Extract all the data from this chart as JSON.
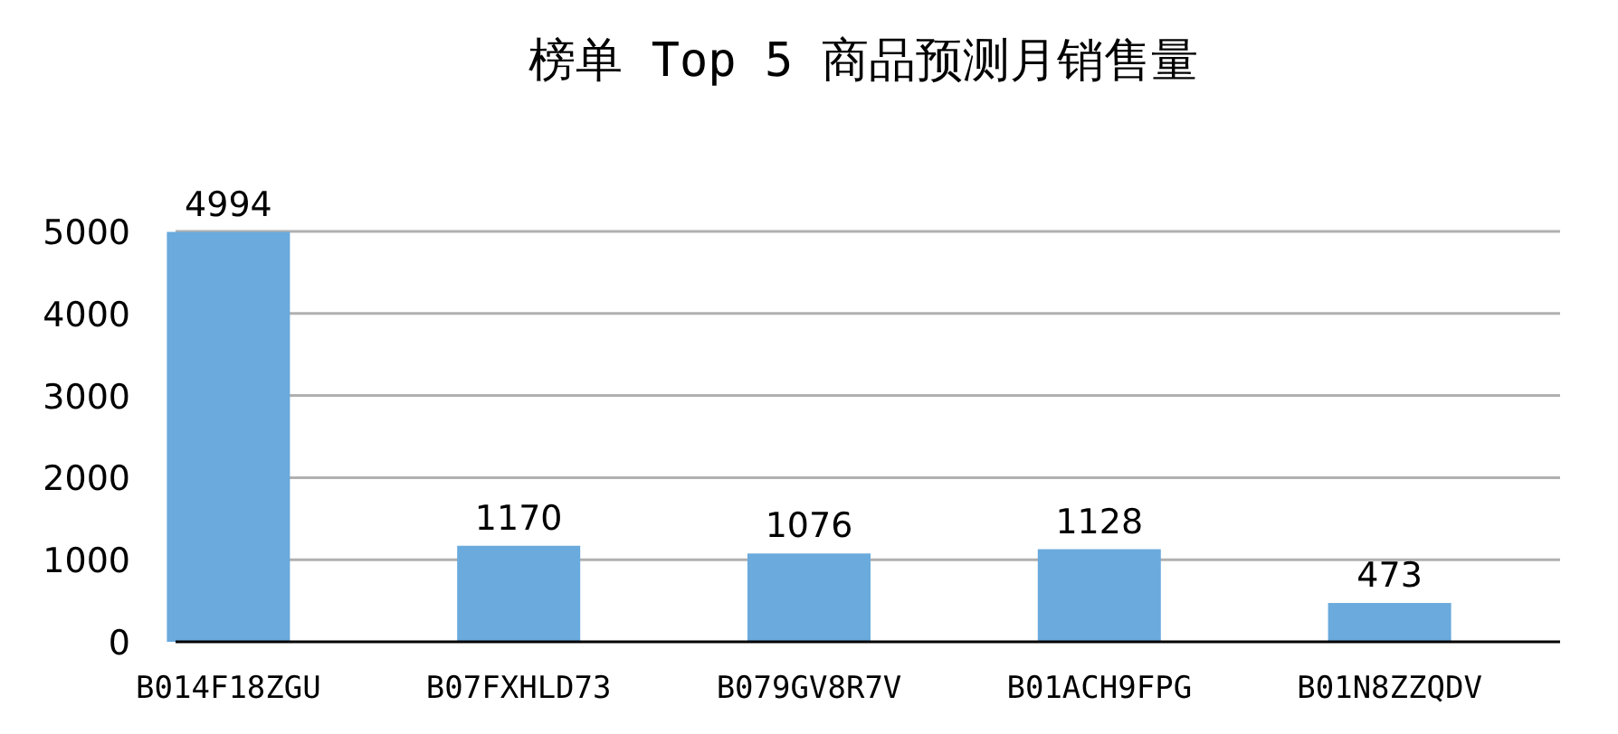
{
  "chart_data": {
    "type": "bar",
    "title": "榜单 Top 5 商品预测月销售量",
    "categories": [
      "B014F18ZGU",
      "B07FXHLD73",
      "B079GV8R7V",
      "B01ACH9FPG",
      "B01N8ZZQDV"
    ],
    "values": [
      4994,
      1170,
      1076,
      1128,
      473
    ],
    "color": "#6aaadc",
    "ylim": [
      0,
      5000
    ],
    "yticks": [
      0,
      1000,
      2000,
      3000,
      4000,
      5000
    ],
    "grid": "y",
    "data_labels": true
  }
}
